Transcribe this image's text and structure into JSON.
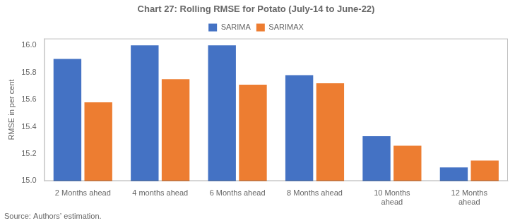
{
  "chart_data": {
    "type": "bar",
    "title": "Chart 27: Rolling RMSE for Potato (July-14 to June-22)",
    "ylabel": "RMSE in per cent",
    "annotation": "Source: Authors’ estimation.",
    "categories": [
      "2 Months ahead",
      "4 months ahead",
      "6 Months ahead",
      "8 Months ahead",
      "10 Months\nahead",
      "12 Months\nahead"
    ],
    "series": [
      {
        "name": "SARIMA",
        "color": "#4472C4",
        "values": [
          15.9,
          16.0,
          16.0,
          15.78,
          15.33,
          15.1
        ]
      },
      {
        "name": "SARIMAX",
        "color": "#ED7D31",
        "values": [
          15.58,
          15.75,
          15.71,
          15.72,
          15.26,
          15.15
        ]
      }
    ],
    "ylim": [
      15.0,
      16.05
    ],
    "yticks": [
      {
        "value": 15.0,
        "label": "15.0"
      },
      15.2,
      15.4,
      15.6,
      15.8,
      {
        "value": 16.0,
        "label": "16.0"
      }
    ],
    "grid": false,
    "legend": "top"
  }
}
